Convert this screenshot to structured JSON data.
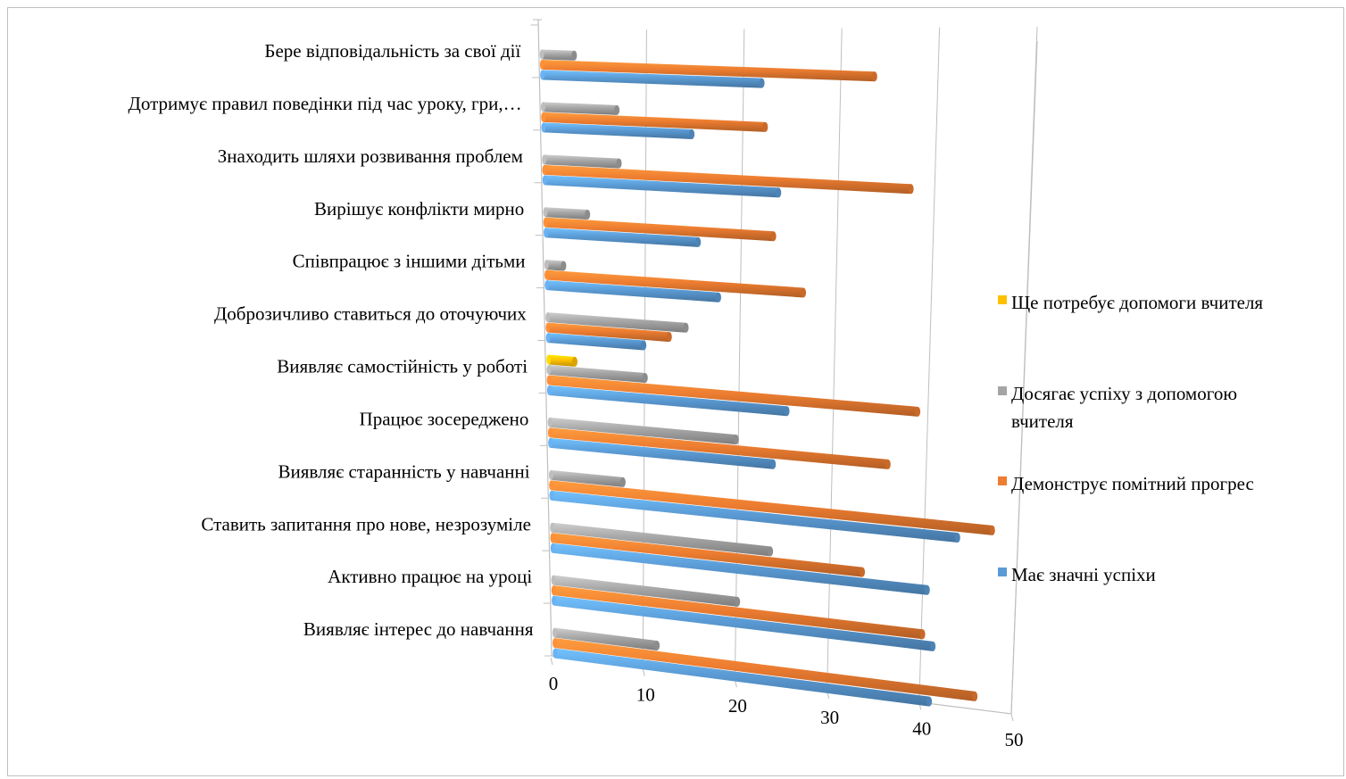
{
  "chart_data": {
    "type": "bar",
    "orientation": "horizontal",
    "style": "3d-cylinder",
    "categories": [
      "Бере відповідальність за свої дії",
      "Дотримує правил поведінки під час уроку,  гри,…",
      "Знаходить шляхи розвивання проблем",
      "Вирішує конфлікти мирно",
      "Співпрацює з іншими дітьми",
      "Доброзичливо ставиться до оточуючих",
      "Виявляє самостійність у роботі",
      "Працює зосереджено",
      "Виявляє старанність у навчанні",
      "Ставить запитання про нове, незрозуміле",
      "Активно працює на уроці",
      "Виявляє інтерес до навчання"
    ],
    "series": [
      {
        "name": "Має значні успіхи",
        "color": "#5b9bd5",
        "values": [
          27,
          18,
          28,
          18,
          20,
          11,
          27,
          25,
          45,
          41,
          41,
          40
        ]
      },
      {
        "name": "Демонструє помітний прогрес",
        "color": "#ed7d31",
        "values": [
          41,
          27,
          44,
          27,
          30,
          14,
          42,
          38,
          49,
          34,
          40,
          45
        ]
      },
      {
        "name": "Досягає успіху з допомогою вчителя",
        "color": "#a5a5a5",
        "values": [
          4,
          9,
          9,
          5,
          2,
          16,
          11,
          21,
          8,
          24,
          20,
          11
        ]
      },
      {
        "name": "Ще потребує допомоги вчителя",
        "color": "#ffc000",
        "values": [
          0,
          0,
          0,
          0,
          0,
          0,
          3,
          0,
          0,
          0,
          0,
          0
        ]
      }
    ],
    "legend_order": [
      3,
      2,
      1,
      0
    ],
    "x_ticks": [
      "0",
      "10",
      "20",
      "30",
      "40",
      "50"
    ],
    "xlim": [
      0,
      50
    ],
    "xlabel": "",
    "ylabel": "",
    "title": "",
    "grid": true,
    "legend": "right"
  }
}
